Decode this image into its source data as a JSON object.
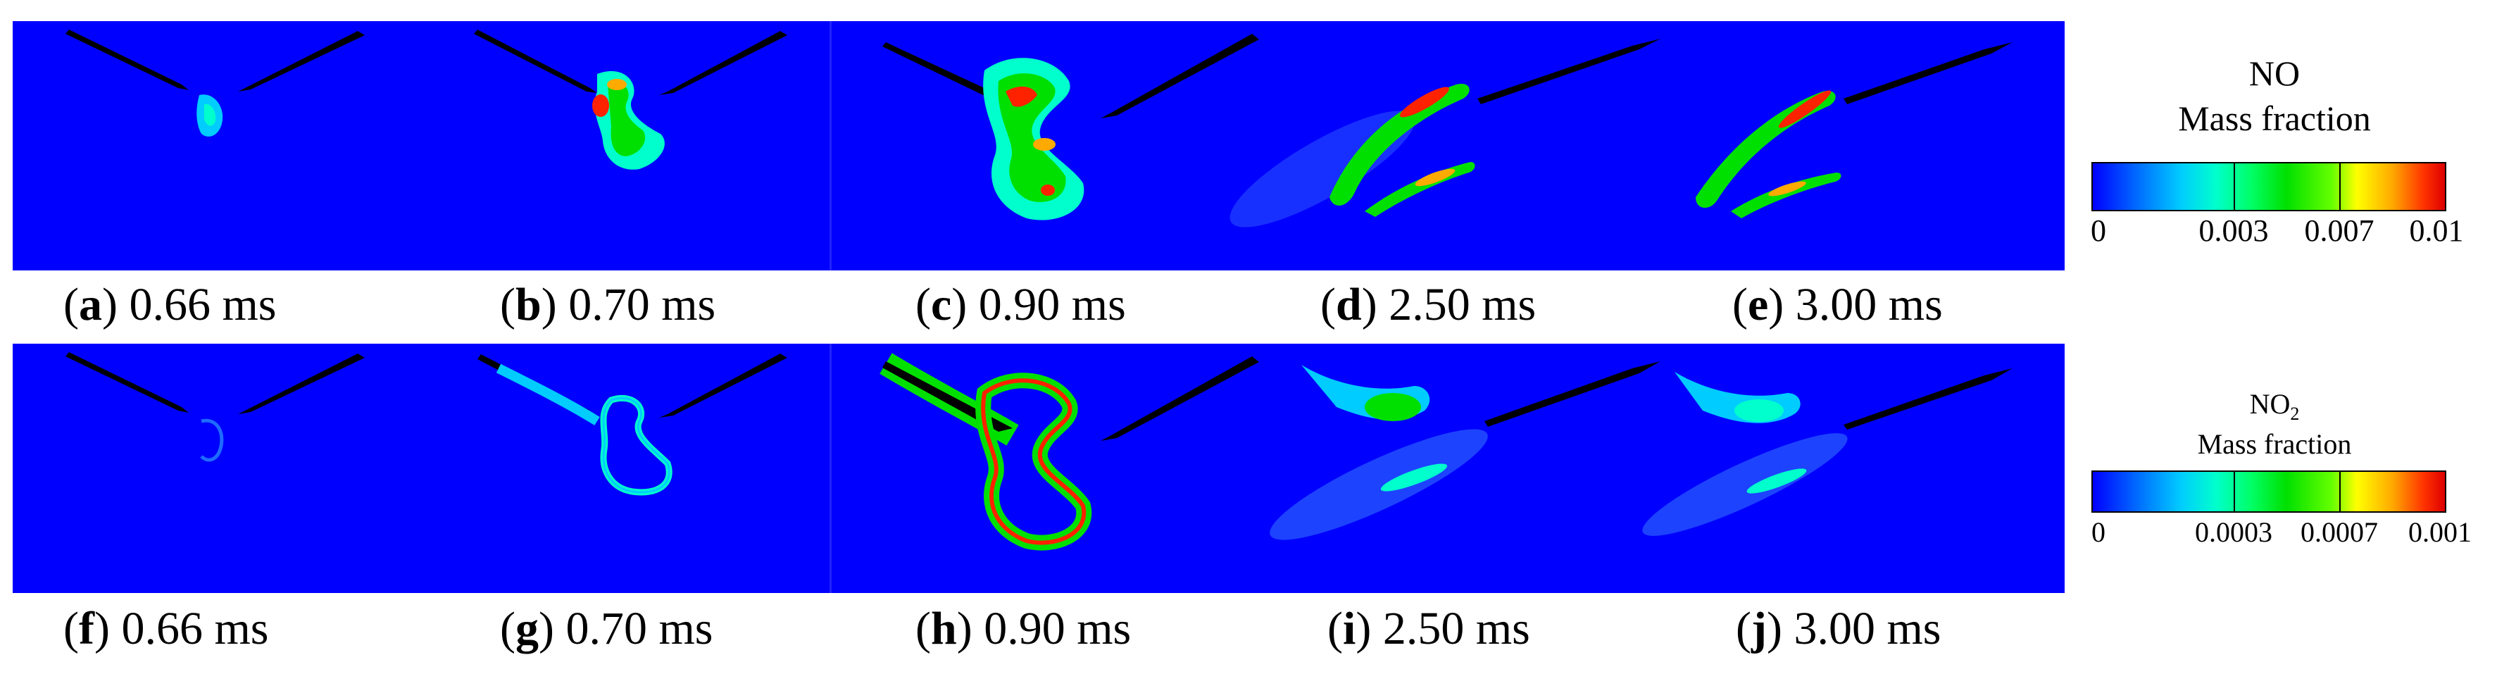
{
  "panels_top": [
    {
      "letter": "a",
      "time": "0.66 ms"
    },
    {
      "letter": "b",
      "time": "0.70 ms"
    },
    {
      "letter": "c",
      "time": "0.90 ms"
    },
    {
      "letter": "d",
      "time": "2.50 ms"
    },
    {
      "letter": "e",
      "time": "3.00 ms"
    }
  ],
  "panels_bottom": [
    {
      "letter": "f",
      "time": "0.66 ms"
    },
    {
      "letter": "g",
      "time": "0.70 ms"
    },
    {
      "letter": "h",
      "time": "0.90 ms"
    },
    {
      "letter": "i",
      "time": "2.50 ms"
    },
    {
      "letter": "j",
      "time": "3.00 ms"
    }
  ],
  "legend_no": {
    "species": "NO",
    "subtitle": "Mass fraction",
    "ticks": [
      "0",
      "0.003",
      "0.007",
      "0.01"
    ]
  },
  "legend_no2": {
    "species": "NO",
    "subscript": "2",
    "subtitle": "Mass fraction",
    "ticks": [
      "0",
      "0.0003",
      "0.0007",
      "0.001"
    ]
  },
  "colors": {
    "background_field": "#0000ff",
    "low": "#00ccff",
    "mid": "#00e000",
    "high": "#ff2200",
    "spray": "#000000"
  }
}
